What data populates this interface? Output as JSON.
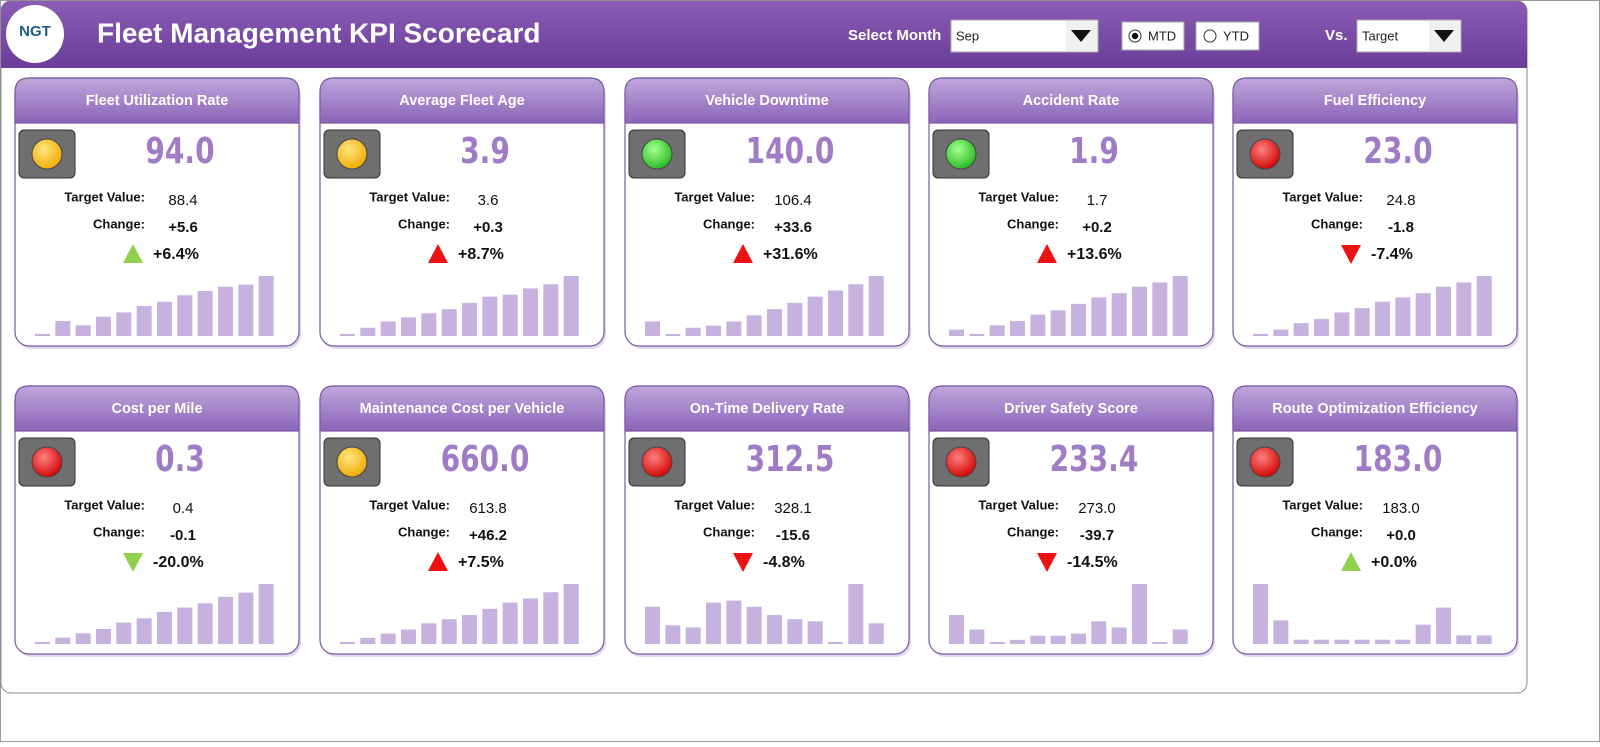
{
  "header": {
    "title": "Fleet Management KPI Scorecard",
    "select_month_label": "Select Month",
    "month": "Sep",
    "mtd_label": "MTD",
    "ytd_label": "YTD",
    "selected_mode": "MTD",
    "vs_label": "Vs.",
    "vs_value": "Target"
  },
  "cards": [
    {
      "title": "Fleet Utilization Rate",
      "value": "94.0",
      "light": "yellow",
      "target_label": "Target Value:",
      "target": "88.4",
      "change_label": "Change:",
      "change": "+5.6",
      "percent": "+6.4%",
      "arrow": "up",
      "arrow_color": "#92d050",
      "bars": [
        2,
        14,
        10,
        18,
        22,
        28,
        32,
        38,
        42,
        46,
        48,
        56
      ]
    },
    {
      "title": "Average Fleet Age",
      "value": "3.9",
      "light": "yellow",
      "target_label": "Target Value:",
      "target": "3.6",
      "change_label": "Change:",
      "change": "+0.3",
      "percent": "+8.7%",
      "arrow": "up",
      "arrow_color": "#ee1111",
      "bars": [
        2,
        8,
        14,
        18,
        22,
        26,
        32,
        38,
        40,
        46,
        50,
        58
      ]
    },
    {
      "title": "Vehicle Downtime",
      "value": "140.0",
      "light": "green",
      "target_label": "Target Value:",
      "target": "106.4",
      "change_label": "Change:",
      "change": "+33.6",
      "percent": "+31.6%",
      "arrow": "up",
      "arrow_color": "#ee1111",
      "bars": [
        14,
        2,
        8,
        10,
        14,
        20,
        26,
        32,
        38,
        44,
        50,
        58
      ]
    },
    {
      "title": "Accident Rate",
      "value": "1.9",
      "light": "green",
      "target_label": "Target Value:",
      "target": "1.7",
      "change_label": "Change:",
      "change": "+0.2",
      "percent": "+13.6%",
      "arrow": "up",
      "arrow_color": "#ee1111",
      "bars": [
        6,
        2,
        10,
        14,
        20,
        24,
        30,
        36,
        40,
        46,
        50,
        56
      ]
    },
    {
      "title": "Fuel Efficiency",
      "value": "23.0",
      "light": "red",
      "target_label": "Target Value:",
      "target": "24.8",
      "change_label": "Change:",
      "change": "-1.8",
      "percent": "-7.4%",
      "arrow": "down",
      "arrow_color": "#ee1111",
      "bars": [
        2,
        6,
        12,
        16,
        22,
        26,
        32,
        36,
        40,
        46,
        50,
        56
      ]
    },
    {
      "title": "Cost per Mile",
      "value": "0.3",
      "light": "red",
      "target_label": "Target Value:",
      "target": "0.4",
      "change_label": "Change:",
      "change": "-0.1",
      "percent": "-20.0%",
      "arrow": "down",
      "arrow_color": "#92d050",
      "bars": [
        2,
        6,
        10,
        14,
        20,
        24,
        30,
        34,
        38,
        44,
        48,
        56
      ]
    },
    {
      "title": "Maintenance Cost per Vehicle",
      "value": "660.0",
      "light": "yellow",
      "target_label": "Target Value:",
      "target": "613.8",
      "change_label": "Change:",
      "change": "+46.2",
      "percent": "+7.5%",
      "arrow": "up",
      "arrow_color": "#ee1111",
      "bars": [
        2,
        6,
        10,
        14,
        20,
        24,
        28,
        34,
        40,
        44,
        50,
        58
      ]
    },
    {
      "title": "On-Time Delivery Rate",
      "value": "312.5",
      "light": "red",
      "target_label": "Target Value:",
      "target": "328.1",
      "change_label": "Change:",
      "change": "-15.6",
      "percent": "-4.8%",
      "arrow": "down",
      "arrow_color": "#ee1111",
      "bars": [
        36,
        18,
        16,
        40,
        42,
        36,
        28,
        24,
        22,
        2,
        58,
        20
      ]
    },
    {
      "title": "Driver Safety Score",
      "value": "233.4",
      "light": "red",
      "target_label": "Target Value:",
      "target": "273.0",
      "change_label": "Change:",
      "change": "-39.7",
      "percent": "-14.5%",
      "arrow": "down",
      "arrow_color": "#ee1111",
      "bars": [
        28,
        14,
        2,
        4,
        8,
        8,
        10,
        22,
        16,
        58,
        2,
        14
      ]
    },
    {
      "title": "Route Optimization Efficiency",
      "value": "183.0",
      "light": "red",
      "target_label": "Target Value:",
      "target": "183.0",
      "change_label": "Change:",
      "change": "+0.0",
      "percent": "+0.0%",
      "arrow": "up",
      "arrow_color": "#92d050",
      "bars": [
        56,
        22,
        4,
        4,
        4,
        4,
        4,
        4,
        18,
        34,
        8,
        8
      ]
    }
  ]
}
